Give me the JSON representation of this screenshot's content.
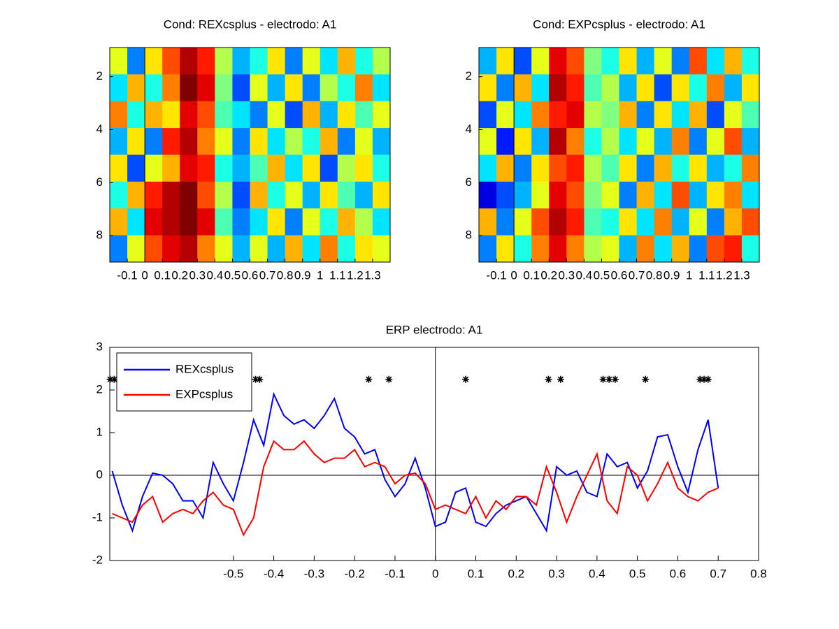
{
  "chart_data": [
    {
      "type": "heatmap",
      "title": "Cond: REXcsplus - electrodo: A1",
      "xlim": [
        -0.2,
        1.4
      ],
      "xticks": [
        -0.1,
        0,
        0.1,
        0.2,
        0.3,
        0.4,
        0.5,
        0.6,
        0.7,
        0.8,
        0.9,
        1,
        1.1,
        1.2,
        1.3
      ],
      "ylim": [
        0.9,
        9
      ],
      "yticks": [
        2,
        4,
        6,
        8
      ],
      "y_reversed": true,
      "colormap": "jet",
      "clim": [
        -1,
        1
      ],
      "z": [
        [
          0.2,
          -0.5,
          0.3,
          0.6,
          0.9,
          0.7,
          0.1,
          -0.4,
          -0.2,
          0.3,
          -0.5,
          0.2,
          -0.3,
          0.4,
          -0.2,
          0.1
        ],
        [
          -0.3,
          0.4,
          -0.2,
          0.5,
          1,
          0.8,
          0,
          -0.6,
          0.2,
          -0.4,
          0.3,
          -0.5,
          0.1,
          -0.2,
          0.5,
          -0.3
        ],
        [
          0.5,
          -0.2,
          0.4,
          0.3,
          0.8,
          0.6,
          -0.1,
          -0.3,
          -0.5,
          0.2,
          -0.6,
          0.4,
          -0.4,
          0.3,
          -0.1,
          0.2
        ],
        [
          -0.4,
          0.3,
          -0.5,
          0.7,
          0.9,
          0.5,
          0.2,
          -0.5,
          0.3,
          -0.3,
          0.1,
          -0.2,
          0.4,
          -0.5,
          0.2,
          -0.4
        ],
        [
          0.3,
          -0.6,
          0.2,
          0.4,
          0.8,
          0.7,
          -0.2,
          -0.4,
          -0.1,
          0.4,
          -0.3,
          0.3,
          -0.6,
          0.1,
          0.3,
          -0.2
        ],
        [
          -0.2,
          0.4,
          0.7,
          0.9,
          1,
          0.6,
          0.1,
          -0.6,
          0.4,
          -0.2,
          0.2,
          -0.4,
          0.3,
          -0.1,
          -0.4,
          0.3
        ],
        [
          0.4,
          -0.3,
          0.8,
          0.9,
          1,
          0.8,
          -0.1,
          -0.5,
          -0.3,
          0.3,
          -0.5,
          0.2,
          -0.2,
          0.4,
          0.1,
          -0.3
        ],
        [
          -0.5,
          0.2,
          0.6,
          0.8,
          0.9,
          0.5,
          0.2,
          -0.4,
          0.2,
          -0.4,
          0.4,
          -0.3,
          0.5,
          -0.2,
          0.3,
          0.2
        ]
      ]
    },
    {
      "type": "heatmap",
      "title": "Cond: EXPcsplus - electrodo: A1",
      "xlim": [
        -0.2,
        1.4
      ],
      "xticks": [
        -0.1,
        0,
        0.1,
        0.2,
        0.3,
        0.4,
        0.5,
        0.6,
        0.7,
        0.8,
        0.9,
        1,
        1.1,
        1.2,
        1.3
      ],
      "ylim": [
        0.9,
        9
      ],
      "yticks": [
        2,
        4,
        6,
        8
      ],
      "y_reversed": true,
      "colormap": "jet",
      "clim": [
        -1,
        1
      ],
      "z": [
        [
          -0.4,
          0.3,
          -0.6,
          0.2,
          0.8,
          0.6,
          0,
          -0.2,
          0.3,
          -0.4,
          0.2,
          -0.5,
          0.6,
          -0.3,
          0.4,
          -0.2
        ],
        [
          0.3,
          -0.5,
          0.4,
          -0.3,
          0.9,
          0.7,
          -0.1,
          0.1,
          -0.4,
          0.3,
          -0.6,
          0.3,
          -0.2,
          0.5,
          -0.4,
          0.3
        ],
        [
          -0.6,
          0.2,
          -0.3,
          0.5,
          0.7,
          0.8,
          0.1,
          0,
          0.4,
          -0.5,
          0.3,
          -0.3,
          0.4,
          -0.6,
          0.2,
          -0.1
        ],
        [
          0.2,
          -0.7,
          0.3,
          -0.4,
          0.9,
          0.5,
          -0.2,
          0.1,
          -0.3,
          0.2,
          -0.4,
          0.5,
          -0.5,
          0.2,
          0.6,
          -0.4
        ],
        [
          -0.3,
          0.4,
          -0.5,
          0.3,
          0.6,
          0.7,
          0.1,
          -0.1,
          0.3,
          -0.5,
          0.4,
          -0.2,
          0.3,
          -0.4,
          -0.2,
          0.5
        ],
        [
          -0.8,
          -0.6,
          -0.4,
          0.2,
          0.8,
          0.6,
          0,
          0.2,
          -0.5,
          0.4,
          -0.3,
          0.6,
          -0.4,
          0.3,
          0.5,
          -0.3
        ],
        [
          0.4,
          -0.5,
          0.2,
          0.6,
          0.9,
          0.7,
          -0.1,
          -0.2,
          0.3,
          -0.3,
          0.5,
          -0.4,
          0.2,
          -0.5,
          0.4,
          0.6
        ],
        [
          -0.5,
          0.3,
          -0.2,
          0.5,
          0.8,
          0.5,
          0.1,
          0.2,
          -0.4,
          0.5,
          -0.3,
          0.4,
          -0.5,
          0.6,
          0.7,
          -0.2
        ]
      ]
    },
    {
      "type": "line",
      "title": "ERP electrodo: A1",
      "xlim": [
        -0.806,
        0.8
      ],
      "xticks": [
        -0.5,
        -0.4,
        -0.3,
        -0.2,
        -0.1,
        0,
        0.1,
        0.2,
        0.3,
        0.4,
        0.5,
        0.6,
        0.7,
        0.8
      ],
      "ylim": [
        -2,
        3
      ],
      "yticks": [
        -2,
        -1,
        0,
        1,
        2,
        3
      ],
      "zero_lines": true,
      "legend": "top-left",
      "x": [
        -0.8,
        -0.775,
        -0.75,
        -0.725,
        -0.7,
        -0.675,
        -0.65,
        -0.625,
        -0.6,
        -0.575,
        -0.55,
        -0.525,
        -0.5,
        -0.475,
        -0.45,
        -0.425,
        -0.4,
        -0.375,
        -0.35,
        -0.325,
        -0.3,
        -0.275,
        -0.25,
        -0.225,
        -0.2,
        -0.175,
        -0.15,
        -0.125,
        -0.1,
        -0.075,
        -0.05,
        -0.025,
        0,
        0.025,
        0.05,
        0.075,
        0.1,
        0.125,
        0.15,
        0.175,
        0.2,
        0.225,
        0.25,
        0.275,
        0.3,
        0.325,
        0.35,
        0.375,
        0.4,
        0.425,
        0.45,
        0.475,
        0.5,
        0.525,
        0.55,
        0.575,
        0.6,
        0.625,
        0.65,
        0.675,
        0.7
      ],
      "series": [
        {
          "name": "REXcsplus",
          "color": "#0000ff",
          "values": [
            0.1,
            -0.7,
            -1.3,
            -0.5,
            0.05,
            0,
            -0.2,
            -0.6,
            -0.6,
            -1,
            0.3,
            -0.2,
            -0.6,
            0.3,
            1.3,
            0.7,
            1.9,
            1.4,
            1.2,
            1.3,
            1.1,
            1.4,
            1.8,
            1.1,
            0.9,
            0.5,
            0.6,
            -0.1,
            -0.5,
            -0.2,
            0.4,
            -0.3,
            -1.2,
            -1.1,
            -0.4,
            -0.3,
            -1.1,
            -1.2,
            -0.9,
            -0.7,
            -0.6,
            -0.5,
            -0.9,
            -1.3,
            0.2,
            0,
            0.1,
            -0.4,
            -0.5,
            0.5,
            0.2,
            0.3,
            -0.3,
            0.1,
            0.9,
            0.95,
            0.2,
            -0.4,
            0.6,
            1.3,
            -0.3
          ]
        },
        {
          "name": "EXPcsplus",
          "color": "#ff0000",
          "values": [
            -0.9,
            -1,
            -1.1,
            -0.7,
            -0.5,
            -1.1,
            -0.9,
            -0.8,
            -0.9,
            -0.6,
            -0.4,
            -0.7,
            -0.8,
            -1.4,
            -1,
            0.2,
            0.8,
            0.6,
            0.6,
            0.8,
            0.5,
            0.3,
            0.4,
            0.4,
            0.6,
            0.2,
            0.3,
            0.2,
            -0.2,
            0,
            0.05,
            -0.2,
            -0.8,
            -0.7,
            -0.8,
            -0.9,
            -0.5,
            -1,
            -0.6,
            -0.8,
            -0.5,
            -0.5,
            -0.7,
            0.2,
            -0.4,
            -1.1,
            -0.5,
            0,
            0.5,
            -0.6,
            -0.9,
            0.2,
            0,
            -0.6,
            -0.2,
            0.3,
            -0.3,
            -0.5,
            -0.6,
            -0.4,
            -0.3
          ]
        }
      ],
      "significance": {
        "x": [
          -0.805,
          -0.795,
          -0.445,
          -0.435,
          -0.165,
          -0.115,
          0.075,
          0.28,
          0.31,
          0.415,
          0.43,
          0.445,
          0.52,
          0.655,
          0.665,
          0.675
        ],
        "y": [
          2.25,
          2.25,
          2.25,
          2.25,
          2.25,
          2.25,
          2.25,
          2.25,
          2.25,
          2.25,
          2.25,
          2.25,
          2.25,
          2.25,
          2.25,
          2.25
        ]
      }
    }
  ]
}
